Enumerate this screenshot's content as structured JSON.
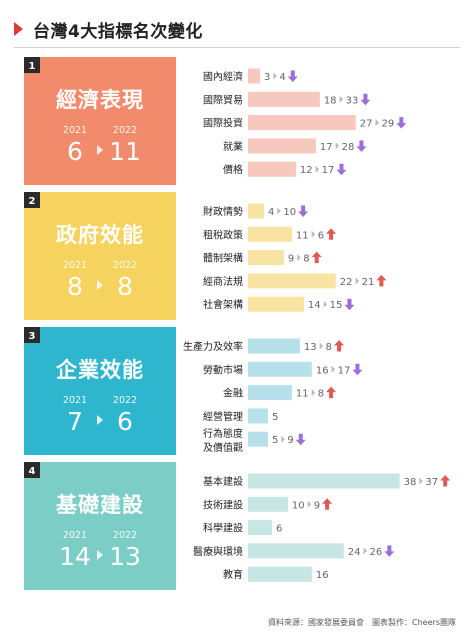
{
  "title": "台灣4大指標名次變化",
  "footer": "資料來源：國家發展委員會　圖表製作：Cheers團隊",
  "colors": {
    "up": "#e05a52",
    "down": "#9b6fd6",
    "sections": [
      {
        "panel": "#f28a6c",
        "bar": "#f7c8bd"
      },
      {
        "panel": "#f6d35e",
        "bar": "#f9e3a3"
      },
      {
        "panel": "#2fb6cf",
        "bar": "#b6e1ea"
      },
      {
        "panel": "#7ccdc6",
        "bar": "#c5e6e2"
      }
    ]
  },
  "chart_data": {
    "type": "bar",
    "title": "台灣4大指標名次變化",
    "years": [
      "2021",
      "2022"
    ],
    "sections": [
      {
        "number": "1",
        "name": "經濟表現",
        "rank_2021": "6",
        "rank_2022": "11",
        "items": [
          {
            "label": "國內經濟",
            "rank_2021": 3,
            "rank_2022": 4,
            "trend": "down"
          },
          {
            "label": "國際貿易",
            "rank_2021": 18,
            "rank_2022": 33,
            "trend": "down"
          },
          {
            "label": "國際投資",
            "rank_2021": 27,
            "rank_2022": 29,
            "trend": "down"
          },
          {
            "label": "就業",
            "rank_2021": 17,
            "rank_2022": 28,
            "trend": "down"
          },
          {
            "label": "價格",
            "rank_2021": 12,
            "rank_2022": 17,
            "trend": "down"
          }
        ]
      },
      {
        "number": "2",
        "name": "政府效能",
        "rank_2021": "8",
        "rank_2022": "8",
        "items": [
          {
            "label": "財政情勢",
            "rank_2021": 4,
            "rank_2022": 10,
            "trend": "down"
          },
          {
            "label": "租稅政策",
            "rank_2021": 11,
            "rank_2022": 6,
            "trend": "up"
          },
          {
            "label": "體制架構",
            "rank_2021": 9,
            "rank_2022": 8,
            "trend": "up"
          },
          {
            "label": "經商法規",
            "rank_2021": 22,
            "rank_2022": 21,
            "trend": "up"
          },
          {
            "label": "社會架構",
            "rank_2021": 14,
            "rank_2022": 15,
            "trend": "down"
          }
        ]
      },
      {
        "number": "3",
        "name": "企業效能",
        "rank_2021": "7",
        "rank_2022": "6",
        "items": [
          {
            "label": "生產力及效率",
            "rank_2021": 13,
            "rank_2022": 8,
            "trend": "up"
          },
          {
            "label": "勞動市場",
            "rank_2021": 16,
            "rank_2022": 17,
            "trend": "down"
          },
          {
            "label": "金融",
            "rank_2021": 11,
            "rank_2022": 8,
            "trend": "up"
          },
          {
            "label": "經營管理",
            "rank_2021": 5,
            "rank_2022": null,
            "trend": "same"
          },
          {
            "label": "行為態度及價值觀",
            "rank_2021": 5,
            "rank_2022": 9,
            "trend": "down"
          }
        ]
      },
      {
        "number": "4",
        "name": "基礎建設",
        "rank_2021": "14",
        "rank_2022": "13",
        "items": [
          {
            "label": "基本建設",
            "rank_2021": 38,
            "rank_2022": 37,
            "trend": "up"
          },
          {
            "label": "技術建設",
            "rank_2021": 10,
            "rank_2022": 9,
            "trend": "up"
          },
          {
            "label": "科學建設",
            "rank_2021": 6,
            "rank_2022": null,
            "trend": "same"
          },
          {
            "label": "醫療與環境",
            "rank_2021": 24,
            "rank_2022": 26,
            "trend": "down"
          },
          {
            "label": "教育",
            "rank_2021": 16,
            "rank_2022": null,
            "trend": "same"
          }
        ]
      }
    ]
  }
}
